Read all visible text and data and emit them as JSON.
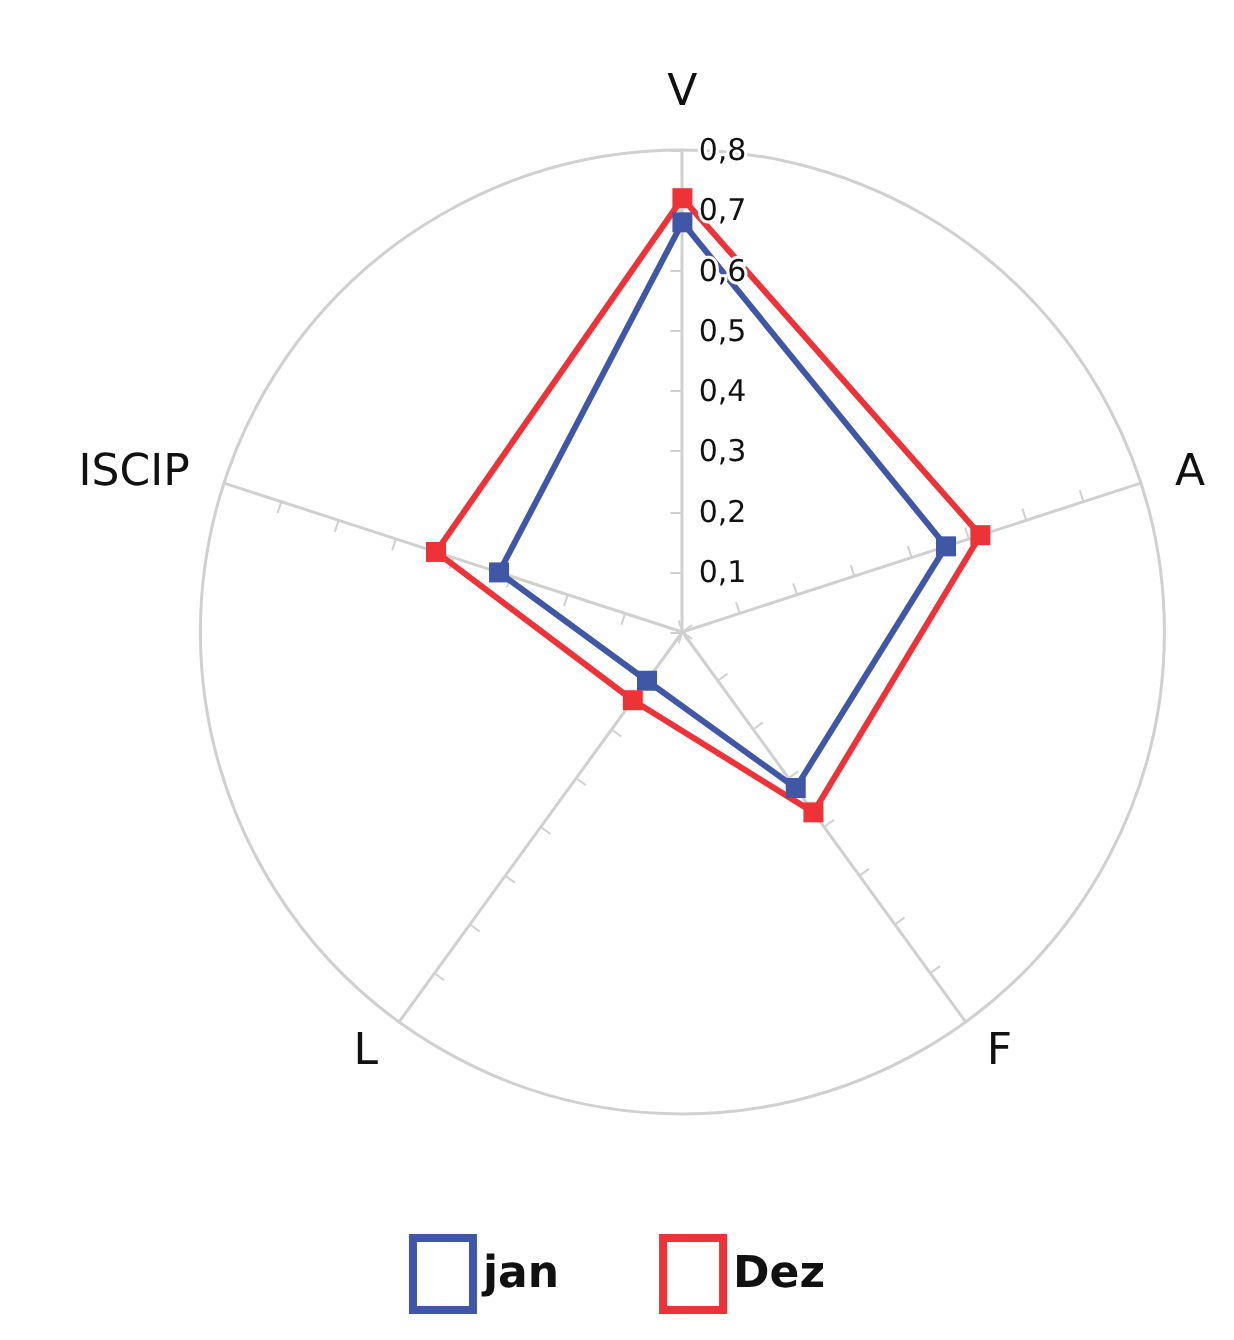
{
  "chart_data": {
    "type": "radar",
    "categories": [
      "V",
      "A",
      "F",
      "L",
      "ISCIP"
    ],
    "series": [
      {
        "name": "jan",
        "color": "#3f57a6",
        "values": [
          0.68,
          0.46,
          0.32,
          0.1,
          0.32
        ]
      },
      {
        "name": "Dez",
        "color": "#ee3338",
        "values": [
          0.72,
          0.52,
          0.37,
          0.14,
          0.43
        ]
      }
    ],
    "ylim": [
      0,
      0.8
    ],
    "yticks": [
      {
        "value": 0.1,
        "label": "0,1"
      },
      {
        "value": 0.2,
        "label": "0,2"
      },
      {
        "value": 0.3,
        "label": "0,3"
      },
      {
        "value": 0.4,
        "label": "0,4"
      },
      {
        "value": 0.5,
        "label": "0,5"
      },
      {
        "value": 0.6,
        "label": "0,6"
      },
      {
        "value": 0.7,
        "label": "0,7"
      },
      {
        "value": 0.8,
        "label": "0,8"
      }
    ],
    "grid": true,
    "legend": "bottom",
    "marker": "square",
    "line_style": "solid"
  }
}
